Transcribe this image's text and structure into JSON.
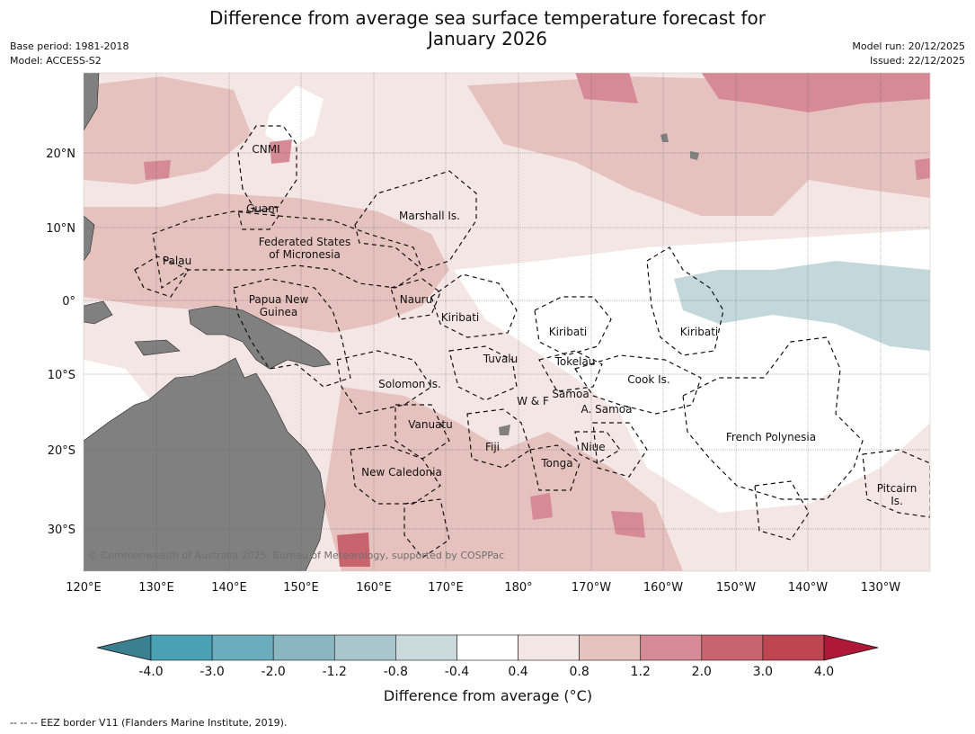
{
  "header": {
    "title_line1": "Difference from average sea surface temperature forecast for",
    "title_line2": "January 2026",
    "base_period": "Base period: 1981-2018",
    "model": "Model: ACCESS-S2",
    "model_run": "Model run: 20/12/2025",
    "issued": "Issued: 22/12/2025"
  },
  "map": {
    "lon_ticks": [
      "120°E",
      "130°E",
      "140°E",
      "150°E",
      "160°E",
      "170°E",
      "180°",
      "170°W",
      "160°W",
      "150°W",
      "140°W",
      "130°W"
    ],
    "lat_ticks": [
      "20°N",
      "10°N",
      "0°",
      "10°S",
      "20°S",
      "30°S"
    ],
    "places": [
      {
        "id": "cnmi",
        "text": "CNMI"
      },
      {
        "id": "guam",
        "text": "Guam"
      },
      {
        "id": "marshall",
        "text": "Marshall Is."
      },
      {
        "id": "fsm1",
        "text": "Federated States"
      },
      {
        "id": "fsm2",
        "text": "of Micronesia"
      },
      {
        "id": "palau",
        "text": "Palau"
      },
      {
        "id": "png1",
        "text": "Papua New"
      },
      {
        "id": "png2",
        "text": "Guinea"
      },
      {
        "id": "nauru",
        "text": "Nauru"
      },
      {
        "id": "kiribati1",
        "text": "Kiribati"
      },
      {
        "id": "kiribati2",
        "text": "Kiribati"
      },
      {
        "id": "kiribati3",
        "text": "Kiribati"
      },
      {
        "id": "tuvalu",
        "text": "Tuvalu"
      },
      {
        "id": "tokelau",
        "text": "Tokelau"
      },
      {
        "id": "solomon",
        "text": "Solomon Is."
      },
      {
        "id": "cook",
        "text": "Cook Is."
      },
      {
        "id": "wf",
        "text": "W & F"
      },
      {
        "id": "samoa",
        "text": "Samoa"
      },
      {
        "id": "asamoa",
        "text": "A. Samoa"
      },
      {
        "id": "vanuatu",
        "text": "Vanuatu"
      },
      {
        "id": "fiji",
        "text": "Fiji"
      },
      {
        "id": "niue",
        "text": "Niue"
      },
      {
        "id": "frpoly",
        "text": "French Polynesia"
      },
      {
        "id": "tonga",
        "text": "Tonga"
      },
      {
        "id": "newcal",
        "text": "New Caledonia"
      },
      {
        "id": "pitcairn1",
        "text": "Pitcairn"
      },
      {
        "id": "pitcairn2",
        "text": "Is."
      }
    ],
    "copyright": "© Commonwealth of Australia 2025, Bureau of Meteorology, supported by COSPPac",
    "colors": {
      "land": "#808080",
      "cool_light": "#c4d8dc",
      "warm_1": "#f4e6e4",
      "warm_2": "#e6c2bf",
      "warm_3": "#d68a95",
      "warm_4": "#c8646e"
    }
  },
  "colorbar": {
    "boundaries": [
      "-4.0",
      "-3.0",
      "-2.0",
      "-1.2",
      "-0.8",
      "-0.4",
      "0.4",
      "0.8",
      "1.2",
      "2.0",
      "3.0",
      "4.0"
    ],
    "colors": [
      "#3b8090",
      "#4aa1b3",
      "#6cadbd",
      "#89b6c1",
      "#a9c6cc",
      "#c9d9dc",
      "#ffffff",
      "#f4e6e4",
      "#e6c2bf",
      "#d68a95",
      "#c8646e",
      "#bf4552",
      "#b0183a"
    ],
    "label": "Difference from average (°C)"
  },
  "footer": {
    "legend_note": "--  --  -- EEZ border V11 (Flanders Marine Institute, 2019)."
  }
}
